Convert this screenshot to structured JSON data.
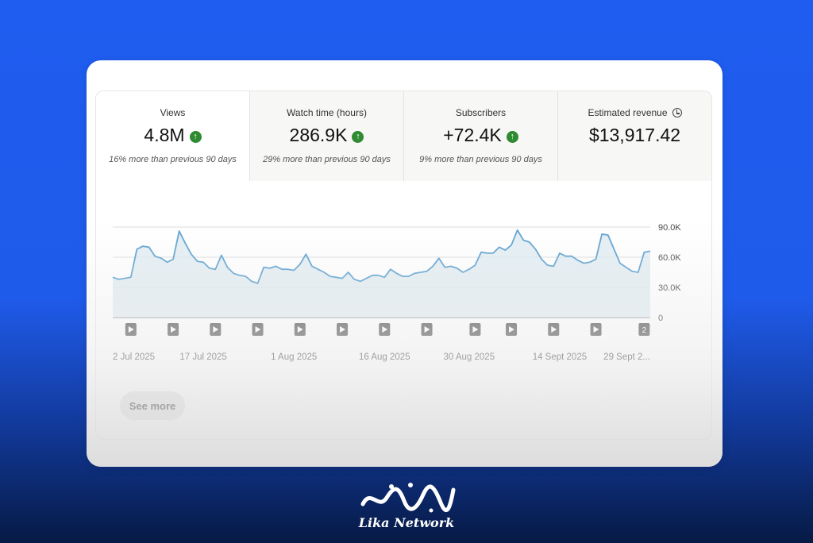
{
  "metrics": [
    {
      "label": "Views",
      "value": "4.8M",
      "trend": "up",
      "note": "16% more than previous 90 days",
      "active": true
    },
    {
      "label": "Watch time (hours)",
      "value": "286.9K",
      "trend": "up",
      "note": "29% more than previous 90 days",
      "active": false
    },
    {
      "label": "Subscribers",
      "value": "+72.4K",
      "trend": "up",
      "note": "9% more than previous 90 days",
      "active": false
    },
    {
      "label": "Estimated revenue",
      "value": "$13,917.42",
      "trend": null,
      "note": "",
      "active": false,
      "icon": "clock-icon"
    }
  ],
  "chart_data": {
    "type": "area",
    "title": "",
    "xlabel": "",
    "ylabel": "",
    "ylim": [
      0,
      90000
    ],
    "y_ticks": [
      "90.0K",
      "60.0K",
      "30.0K",
      "0"
    ],
    "y_tick_values": [
      90000,
      60000,
      30000,
      0
    ],
    "x_tick_labels": [
      "2 Jul 2025",
      "17 Jul 2025",
      "1 Aug 2025",
      "16 Aug 2025",
      "30 Aug 2025",
      "14 Sept 2025",
      "29 Sept 2..."
    ],
    "x_tick_days": [
      0,
      15,
      30,
      45,
      59,
      74,
      89
    ],
    "series": [
      {
        "values": [
          40000,
          38000,
          39000,
          40000,
          68000,
          71000,
          70000,
          61000,
          59000,
          55000,
          58000,
          86000,
          74000,
          63000,
          56000,
          55000,
          49000,
          48000,
          62000,
          50000,
          44000,
          42000,
          41000,
          36000,
          34000,
          50000,
          49000,
          51000,
          48000,
          48000,
          47000,
          53000,
          63000,
          51000,
          48000,
          45000,
          41000,
          40000,
          39000,
          45000,
          38000,
          36000,
          39000,
          42000,
          42000,
          40000,
          48000,
          44000,
          41000,
          41000,
          44000,
          45000,
          46000,
          51000,
          59000,
          50000,
          51000,
          49000,
          45000,
          48000,
          52000,
          65000,
          64000,
          64000,
          70000,
          67000,
          72000,
          87000,
          77000,
          75000,
          68000,
          58000,
          52000,
          51000,
          64000,
          61000,
          61000,
          57000,
          54000,
          55000,
          58000,
          83000,
          82000,
          68000,
          54000,
          50000,
          46000,
          45000,
          65000,
          66000
        ],
        "color": "#5aa0d0"
      }
    ],
    "video_markers": [
      {
        "label": ""
      },
      {
        "label": ""
      },
      {
        "label": ""
      },
      {
        "label": ""
      },
      {
        "label": ""
      },
      {
        "label": ""
      },
      {
        "label": ""
      },
      {
        "label": ""
      },
      {
        "label": ""
      },
      {
        "label": ""
      },
      {
        "label": ""
      },
      {
        "label": ""
      },
      {
        "label": "2"
      }
    ],
    "video_marker_days": [
      3,
      10,
      17,
      24,
      31,
      38,
      45,
      52,
      60,
      66,
      73,
      80,
      88
    ]
  },
  "actions": {
    "see_more": "See more"
  },
  "footer": {
    "brand": "Lika Network",
    "logo_icon": "arabic-calligraphy-logo"
  }
}
